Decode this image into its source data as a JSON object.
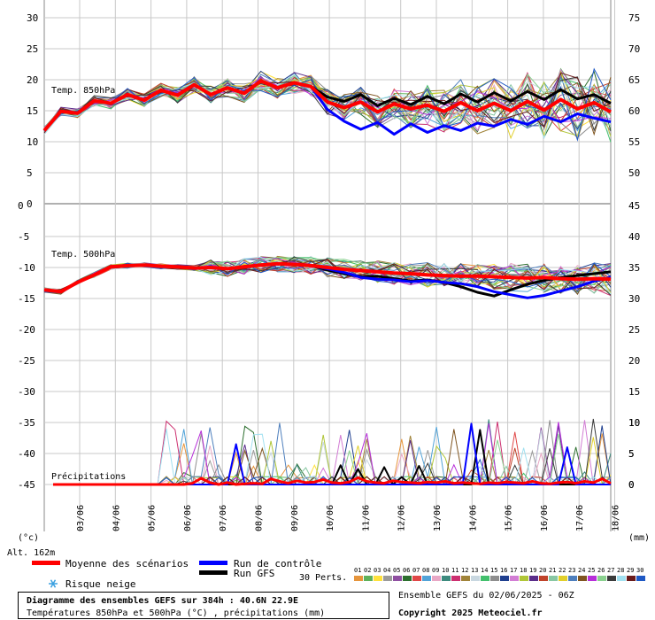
{
  "chart_data": {
    "type": "line",
    "panels": {
      "temp850": {
        "label": "Temp. 850hPa",
        "left_ticks": [
          "30",
          "25",
          "20",
          "15",
          "10",
          "5",
          "0"
        ],
        "right_ticks": [
          "75",
          "70",
          "65",
          "60",
          "55",
          "50"
        ],
        "ylim_left": [
          0,
          33
        ],
        "ylim_right": [
          45,
          78
        ]
      },
      "temp500": {
        "label": "Temp. 500hPa",
        "left_ticks": [
          "-5",
          "-10",
          "-15",
          "-20",
          "-25",
          "-30",
          "-35",
          "-40",
          "-45"
        ],
        "right_ticks": [
          "40",
          "35",
          "30",
          "25",
          "20",
          "15",
          "10",
          "5",
          "0"
        ],
        "ylim_left": [
          -47,
          0
        ]
      },
      "precip": {
        "label": "Précipitations"
      }
    },
    "x_dates": [
      "03/06",
      "04/06",
      "05/06",
      "06/06",
      "07/06",
      "08/06",
      "09/06",
      "10/06",
      "11/06",
      "12/06",
      "13/06",
      "14/06",
      "15/06",
      "16/06",
      "17/06",
      "18/06"
    ],
    "unit_left": "(°c)",
    "unit_right": "(mm)",
    "altitude": "Alt. 162m",
    "series": [
      {
        "name": "Moyenne des scénarios",
        "color": "#ff0000",
        "t850": [
          11.8,
          14.9,
          14.6,
          16.6,
          16.2,
          17.6,
          16.7,
          18.3,
          17.5,
          19.2,
          17.6,
          18.7,
          17.8,
          19.8,
          18.7,
          19.5,
          18.9,
          16.4,
          15.5,
          16.4,
          14.8,
          16.1,
          15.3,
          15.9,
          14.9,
          16.3,
          15.0,
          16.2,
          15.0,
          16.5,
          15.1,
          16.8,
          15.3,
          16.3,
          14.8
        ],
        "t500": [
          -13.6,
          -13.9,
          -12.4,
          -11.2,
          -9.9,
          -9.7,
          -9.6,
          -9.8,
          -9.9,
          -10.1,
          -10.0,
          -10.2,
          -9.9,
          -9.6,
          -9.4,
          -9.5,
          -9.7,
          -10.0,
          -10.3,
          -10.5,
          -10.7,
          -10.9,
          -11.0,
          -11.2,
          -11.3,
          -11.4,
          -11.4,
          -11.5,
          -11.6,
          -11.7,
          -11.6,
          -11.8,
          -11.9,
          -11.8,
          -11.9
        ],
        "precip": [
          0,
          0,
          0,
          0,
          0,
          0,
          0,
          0,
          0,
          0,
          0,
          0,
          0,
          0,
          0,
          0,
          0.2,
          1.0,
          0.3,
          0,
          0.3,
          0,
          0.1,
          0.2,
          0.1,
          0.9,
          0.5,
          0.2,
          0.6,
          0.3,
          0.4,
          0.8,
          0.3,
          0.2,
          0.4,
          1.1,
          0.5,
          0.3,
          0.2,
          0.6,
          0.4,
          0.3,
          0.2,
          0.4,
          0.3,
          0.5,
          0.2,
          0.3,
          0.2,
          0.1,
          0.3,
          0.2,
          0.4,
          0.3,
          0.2,
          0.5,
          0.2,
          0.1,
          0.3,
          0.4,
          0.2,
          0.5,
          0.3,
          0.9,
          0.2
        ]
      },
      {
        "name": "Run de contrôle",
        "color": "#0000ff",
        "t850": [
          11.8,
          14.9,
          14.6,
          16.6,
          16.2,
          17.6,
          16.7,
          18.3,
          17.5,
          19.2,
          17.6,
          18.7,
          17.8,
          19.8,
          18.7,
          19.5,
          18.9,
          15.2,
          13.3,
          12.0,
          13.1,
          11.2,
          12.9,
          11.5,
          12.6,
          11.8,
          13.0,
          12.5,
          13.6,
          12.8,
          14.1,
          13.2,
          14.5,
          13.8,
          13.2
        ],
        "t500": [
          -13.6,
          -13.9,
          -12.4,
          -11.2,
          -9.9,
          -9.7,
          -9.6,
          -9.8,
          -9.9,
          -10.1,
          -10.0,
          -10.2,
          -9.9,
          -9.6,
          -9.4,
          -9.5,
          -9.7,
          -10.2,
          -10.8,
          -11.6,
          -11.9,
          -12.0,
          -12.3,
          -12.1,
          -12.4,
          -12.6,
          -13.1,
          -13.9,
          -14.4,
          -14.9,
          -14.5,
          -13.8,
          -13.1,
          -12.2,
          -11.6
        ],
        "precip": [
          0,
          0,
          0,
          0,
          0,
          0,
          0,
          0,
          0,
          0,
          0,
          0,
          0,
          0,
          0,
          0,
          0,
          0,
          0,
          0,
          0,
          6.5,
          0,
          0,
          0,
          0,
          0,
          0,
          0,
          0,
          0,
          0,
          0,
          0,
          0,
          0,
          0,
          0,
          0,
          0,
          0,
          0,
          0,
          0,
          0,
          0,
          0,
          0,
          9.8,
          0,
          0,
          0,
          0,
          0,
          0,
          0,
          0,
          0,
          0,
          6.0,
          0,
          0,
          0,
          0,
          0
        ]
      },
      {
        "name": "Run GFS",
        "color": "#000000",
        "t850": [
          11.8,
          14.9,
          14.6,
          16.6,
          16.2,
          17.6,
          16.7,
          18.3,
          17.5,
          19.2,
          17.6,
          18.7,
          17.8,
          19.8,
          18.7,
          19.5,
          18.9,
          17.2,
          16.5,
          17.6,
          15.8,
          17.0,
          16.0,
          17.3,
          16.1,
          17.7,
          16.4,
          17.9,
          16.6,
          18.1,
          16.8,
          18.4,
          16.9,
          17.6,
          16.2
        ],
        "t500": [
          -13.6,
          -13.9,
          -12.4,
          -11.2,
          -9.9,
          -9.7,
          -9.6,
          -9.8,
          -9.9,
          -10.1,
          -10.0,
          -10.2,
          -9.9,
          -9.6,
          -9.4,
          -9.5,
          -9.7,
          -10.4,
          -11.0,
          -11.5,
          -11.4,
          -11.8,
          -12.2,
          -12.0,
          -12.4,
          -13.1,
          -14.0,
          -14.6,
          -13.6,
          -12.7,
          -12.1,
          -11.6,
          -11.3,
          -11.0,
          -10.7
        ],
        "precip": [
          0,
          0,
          0,
          0,
          0,
          0,
          0,
          0,
          0,
          0,
          0,
          0,
          0,
          0,
          0,
          0,
          0,
          0,
          0,
          0,
          0,
          0,
          0,
          0,
          0,
          0,
          0,
          0,
          0,
          0,
          0,
          0,
          0,
          3.1,
          0,
          2.5,
          0,
          0,
          2.8,
          0,
          1.2,
          0,
          3.0,
          0,
          0,
          0,
          0,
          0,
          0,
          8.8,
          0,
          0,
          0,
          0,
          0,
          0,
          0,
          0,
          0,
          0,
          0,
          0,
          0,
          0,
          0
        ]
      }
    ],
    "precip_ticks": [
      "10",
      "5",
      "0"
    ]
  },
  "legend": {
    "mean_label": "Moyenne des scénarios",
    "control_label": "Run de contrôle",
    "gfs_label": "Run GFS",
    "snow_label": "Risque neige",
    "perts_label": "30 Perts.",
    "pert_numbers": [
      "01",
      "02",
      "03",
      "04",
      "05",
      "06",
      "07",
      "08",
      "09",
      "10",
      "11",
      "12",
      "13",
      "14",
      "15",
      "16",
      "17",
      "18",
      "19",
      "20",
      "21",
      "22",
      "23",
      "24",
      "25",
      "26",
      "27",
      "28",
      "29",
      "30"
    ],
    "pert_colors": [
      "#e6953c",
      "#5fb15a",
      "#ffe13b",
      "#9b9b9b",
      "#8f4fa1",
      "#2d6f2f",
      "#e04747",
      "#51a3d8",
      "#e8a7c5",
      "#3d8a7e",
      "#cc2f6f",
      "#a08339",
      "#c8d7e0",
      "#43c06d",
      "#8e8e8e",
      "#1f3f8f",
      "#d27dd4",
      "#b0c637",
      "#5b2d8a",
      "#c0432a",
      "#88c7a3",
      "#e1cf2b",
      "#4e7fbd",
      "#7f5520",
      "#b72fd9",
      "#8ad18f",
      "#3b3b3b",
      "#a1e0f0",
      "#6a1b1b",
      "#1e58c4"
    ]
  },
  "footer": {
    "title": "Diagramme des ensembles GEFS sur 384h : 40.6N 22.9E",
    "subtitle": "Températures 850hPa et 500hPa (°C) , précipitations (mm)",
    "run_info": "Ensemble GEFS du 02/06/2025 - 06Z",
    "copyright": "Copyright 2025 Meteociel.fr"
  }
}
